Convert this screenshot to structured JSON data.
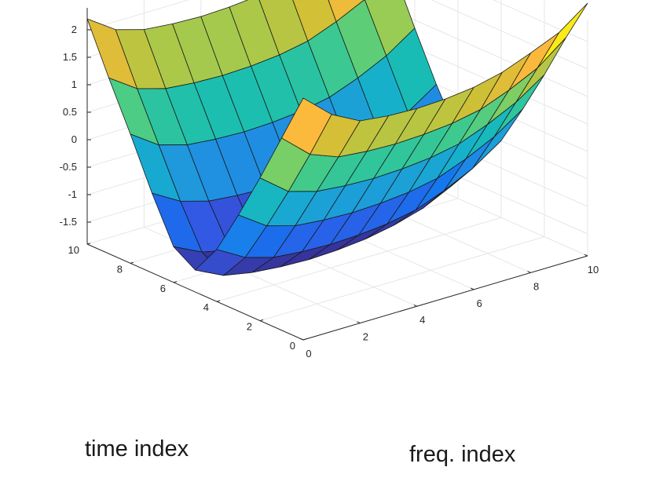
{
  "chart_data": {
    "type": "surface",
    "colormap": "parula",
    "grid": true,
    "box": false,
    "xlabel": "time index",
    "ylabel": "freq. index",
    "zlabel": "",
    "xlim": [
      0,
      10
    ],
    "ylim": [
      0,
      10
    ],
    "zlim": [
      -1.9,
      2.4
    ],
    "clim": [
      -2,
      2.2
    ],
    "xticks": [
      0,
      2,
      4,
      6,
      8,
      10
    ],
    "yticks": [
      0,
      2,
      4,
      6,
      8,
      10
    ],
    "zticks": [
      -1.5,
      -1,
      -0.5,
      0,
      0.5,
      1,
      1.5,
      2
    ],
    "time_index": [
      0,
      1,
      2,
      3,
      4,
      5,
      6,
      7,
      8,
      9,
      10
    ],
    "freq_index": [
      0,
      1,
      2,
      3,
      4,
      5,
      6,
      7,
      8,
      9,
      10
    ],
    "z_note": "z[i][j] = value at time_index[i], freq_index[j]",
    "z": [
      [
        2.5,
        2.05,
        1.78,
        1.72,
        1.7,
        1.72,
        1.78,
        1.9,
        2.1,
        2.32,
        2.7
      ],
      [
        1.6,
        1.15,
        0.95,
        0.9,
        0.88,
        0.9,
        0.95,
        1.05,
        1.25,
        1.5,
        1.9
      ],
      [
        0.7,
        0.3,
        0.15,
        0.1,
        0.08,
        0.1,
        0.15,
        0.25,
        0.45,
        0.7,
        1.05
      ],
      [
        -0.15,
        -0.5,
        -0.65,
        -0.7,
        -0.72,
        -0.7,
        -0.65,
        -0.55,
        -0.35,
        -0.1,
        0.25
      ],
      [
        -0.95,
        -1.25,
        -1.4,
        -1.45,
        -1.47,
        -1.45,
        -1.4,
        -1.3,
        -1.1,
        -0.85,
        -0.5
      ],
      [
        -1.5,
        -1.75,
        -1.85,
        -1.9,
        -1.92,
        -1.9,
        -1.85,
        -1.75,
        -1.6,
        -1.35,
        -1.0
      ],
      [
        -1.25,
        -1.5,
        -1.62,
        -1.67,
        -1.69,
        -1.67,
        -1.62,
        -1.52,
        -1.35,
        -1.1,
        -0.75
      ],
      [
        -0.45,
        -0.75,
        -0.9,
        -0.95,
        -0.97,
        -0.95,
        -0.9,
        -0.8,
        -0.6,
        -0.35,
        0.0
      ],
      [
        0.45,
        0.1,
        -0.05,
        -0.1,
        -0.12,
        -0.1,
        -0.05,
        0.05,
        0.25,
        0.5,
        0.85
      ],
      [
        1.3,
        0.95,
        0.8,
        0.75,
        0.73,
        0.75,
        0.8,
        0.9,
        1.1,
        1.35,
        1.75
      ],
      [
        2.2,
        1.85,
        1.7,
        1.65,
        1.63,
        1.65,
        1.7,
        1.8,
        2.0,
        2.25,
        2.6
      ]
    ]
  }
}
